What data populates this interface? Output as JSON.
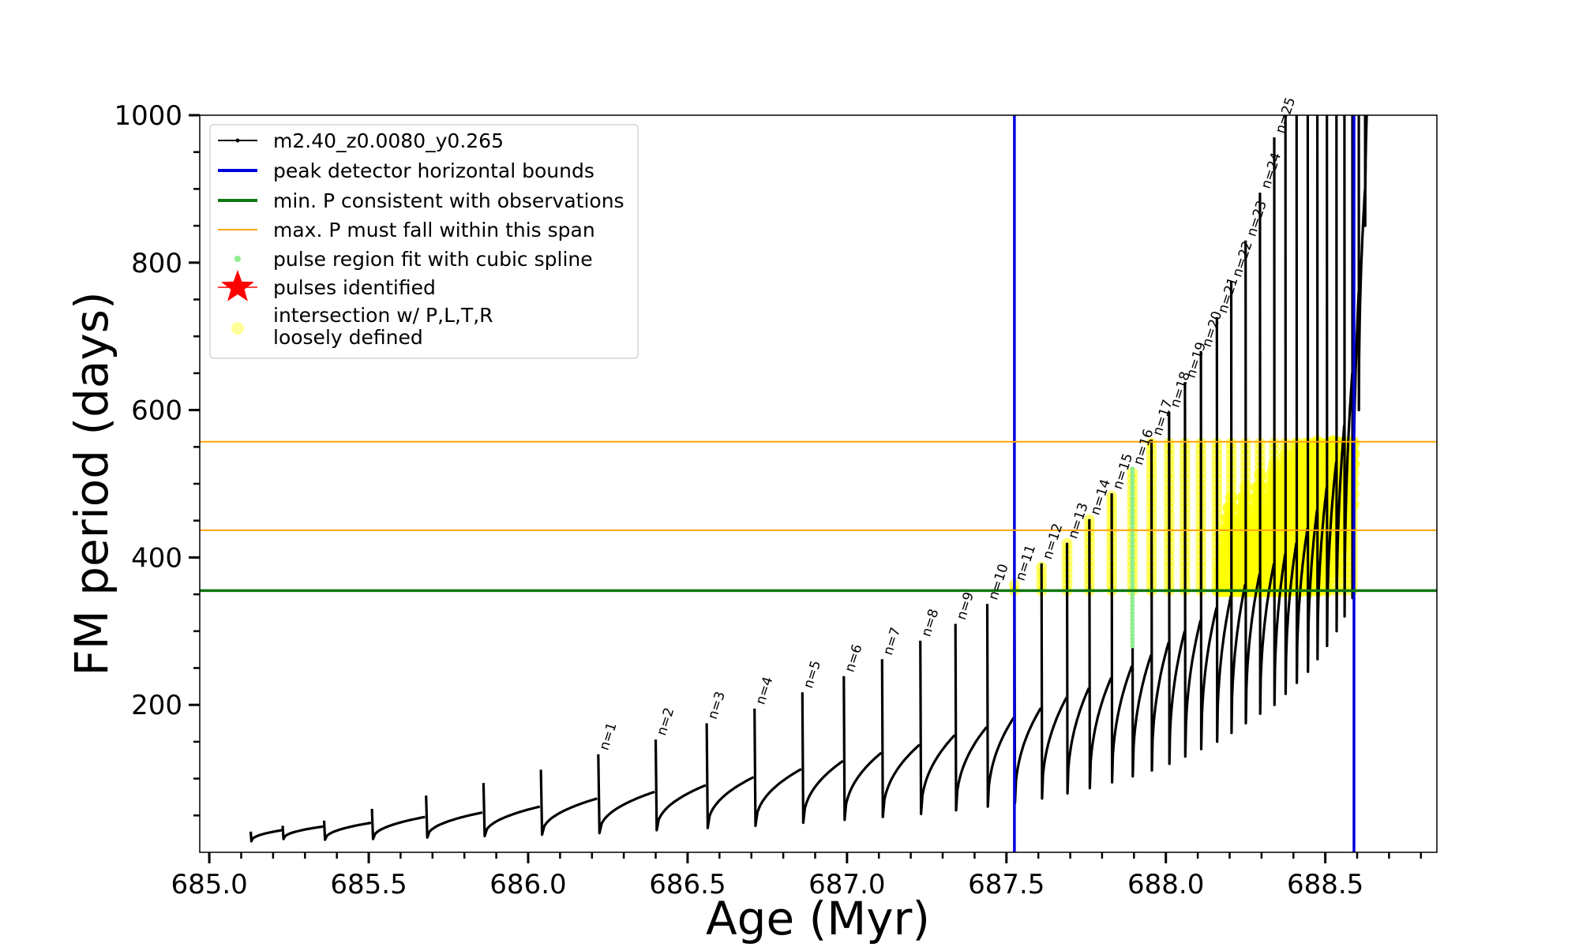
{
  "chart_data": {
    "type": "line",
    "xlabel": "Age (Myr)",
    "ylabel": "FM period (days)",
    "xlim": [
      684.97,
      688.85
    ],
    "ylim": [
      0,
      1000
    ],
    "x_ticks": [
      685.0,
      685.5,
      686.0,
      686.5,
      687.0,
      687.5,
      688.0,
      688.5
    ],
    "x_tick_labels": [
      "685.0",
      "685.5",
      "686.0",
      "686.5",
      "687.0",
      "687.5",
      "688.0",
      "688.5"
    ],
    "y_ticks": [
      200,
      400,
      600,
      800,
      1000
    ],
    "y_tick_labels": [
      "200",
      "400",
      "600",
      "800",
      "1000"
    ],
    "grid": false,
    "legend_position": "top-left",
    "legend": [
      {
        "label": "m2.40_z0.0080_y0.265",
        "kind": "line-marker",
        "color": "#000000"
      },
      {
        "label": "peak detector horizontal bounds",
        "kind": "line",
        "color": "#0000dd"
      },
      {
        "label": "min. P consistent with observations",
        "kind": "line",
        "color": "#117711"
      },
      {
        "label": "max. P must fall within this span",
        "kind": "thin-line",
        "color": "#ffa500"
      },
      {
        "label": "pulse region fit with cubic spline",
        "kind": "dot",
        "color": "#90ee90"
      },
      {
        "label": "pulses identified",
        "kind": "star",
        "color": "#ff0000"
      },
      {
        "label": "intersection w/ P,L,T,R\nloosely defined",
        "kind": "dot",
        "color": "#ffff99"
      }
    ],
    "vertical_lines": {
      "color": "#0000dd",
      "x": [
        687.525,
        688.59
      ]
    },
    "min_period": {
      "color": "#117711",
      "y": 355
    },
    "max_period_span": {
      "color": "#ffa500",
      "y": [
        437,
        557
      ]
    },
    "colors": {
      "track": "#000000",
      "spline": "#90ee90",
      "loose": "#ffff00"
    },
    "pulses": [
      {
        "t": 685.13,
        "base": 15,
        "peak": 28,
        "end": 30
      },
      {
        "t": 685.23,
        "base": 18,
        "peak": 36,
        "end": 35
      },
      {
        "t": 685.36,
        "base": 17,
        "peak": 43,
        "end": 40
      },
      {
        "t": 685.51,
        "base": 18,
        "peak": 59,
        "end": 48
      },
      {
        "t": 685.68,
        "base": 20,
        "peak": 77,
        "end": 54
      },
      {
        "t": 685.86,
        "base": 22,
        "peak": 94,
        "end": 62
      },
      {
        "t": 686.04,
        "base": 24,
        "peak": 112,
        "end": 73
      },
      {
        "t": 686.22,
        "base": 26,
        "peak": 133,
        "end": 82,
        "label": "n=1"
      },
      {
        "t": 686.4,
        "base": 30,
        "peak": 153,
        "end": 91,
        "label": "n=2"
      },
      {
        "t": 686.56,
        "base": 33,
        "peak": 175,
        "end": 102,
        "label": "n=3"
      },
      {
        "t": 686.71,
        "base": 36,
        "peak": 195,
        "end": 113,
        "label": "n=4"
      },
      {
        "t": 686.86,
        "base": 40,
        "peak": 217,
        "end": 124,
        "label": "n=5"
      },
      {
        "t": 686.99,
        "base": 44,
        "peak": 239,
        "end": 135,
        "label": "n=6"
      },
      {
        "t": 687.11,
        "base": 48,
        "peak": 262,
        "end": 146,
        "label": "n=7"
      },
      {
        "t": 687.23,
        "base": 52,
        "peak": 287,
        "end": 159,
        "label": "n=8"
      },
      {
        "t": 687.34,
        "base": 57,
        "peak": 310,
        "end": 170,
        "label": "n=9"
      },
      {
        "t": 687.44,
        "base": 62,
        "peak": 337,
        "end": 183,
        "label": "n=10"
      },
      {
        "t": 687.525,
        "base": 67,
        "peak": 363,
        "end": 196,
        "label": "n=11"
      },
      {
        "t": 687.61,
        "base": 73,
        "peak": 392,
        "end": 210,
        "label": "n=12"
      },
      {
        "t": 687.69,
        "base": 80,
        "peak": 420,
        "end": 223,
        "label": "n=13"
      },
      {
        "t": 687.76,
        "base": 87,
        "peak": 452,
        "end": 237,
        "label": "n=14"
      },
      {
        "t": 687.83,
        "base": 95,
        "peak": 487,
        "end": 253,
        "label": "n=15"
      },
      {
        "t": 687.895,
        "base": 103,
        "peak": 520,
        "end": 268,
        "label": "n=16"
      },
      {
        "t": 687.955,
        "base": 111,
        "peak": 560,
        "end": 285,
        "label": "n=17"
      },
      {
        "t": 688.01,
        "base": 120,
        "peak": 598,
        "end": 300,
        "label": "n=18"
      },
      {
        "t": 688.06,
        "base": 130,
        "peak": 638,
        "end": 315,
        "label": "n=19"
      },
      {
        "t": 688.11,
        "base": 140,
        "peak": 680,
        "end": 332,
        "label": "n=20"
      },
      {
        "t": 688.16,
        "base": 150,
        "peak": 726,
        "end": 348,
        "label": "n=21"
      },
      {
        "t": 688.205,
        "base": 162,
        "peak": 775,
        "end": 364,
        "label": "n=22"
      },
      {
        "t": 688.25,
        "base": 175,
        "peak": 830,
        "end": 378,
        "label": "n=23"
      },
      {
        "t": 688.295,
        "base": 188,
        "peak": 895,
        "end": 392,
        "label": "n=24"
      },
      {
        "t": 688.34,
        "base": 200,
        "peak": 970,
        "end": 405,
        "label": "n=25"
      },
      {
        "t": 688.375,
        "base": 215,
        "peak": 1000,
        "end": 420
      },
      {
        "t": 688.41,
        "base": 230,
        "peak": 1000,
        "end": 440
      },
      {
        "t": 688.445,
        "base": 245,
        "peak": 1000,
        "end": 465
      },
      {
        "t": 688.475,
        "base": 262,
        "peak": 1000,
        "end": 495
      },
      {
        "t": 688.505,
        "base": 280,
        "peak": 1000,
        "end": 530
      },
      {
        "t": 688.535,
        "base": 300,
        "peak": 1000,
        "end": 580
      },
      {
        "t": 688.56,
        "base": 320,
        "peak": 1000,
        "end": 650
      },
      {
        "t": 688.585,
        "base": 345,
        "peak": 1000,
        "end": 760
      },
      {
        "t": 688.605,
        "base": 600,
        "peak": 1000,
        "end": 900
      },
      {
        "t": 688.625,
        "base": 850,
        "peak": 1000,
        "end": 1000
      }
    ],
    "spline_pulse": {
      "t": 687.895,
      "from": 280,
      "to": 520
    },
    "envelope_end": {
      "t": 688.63,
      "value": 1000
    }
  }
}
